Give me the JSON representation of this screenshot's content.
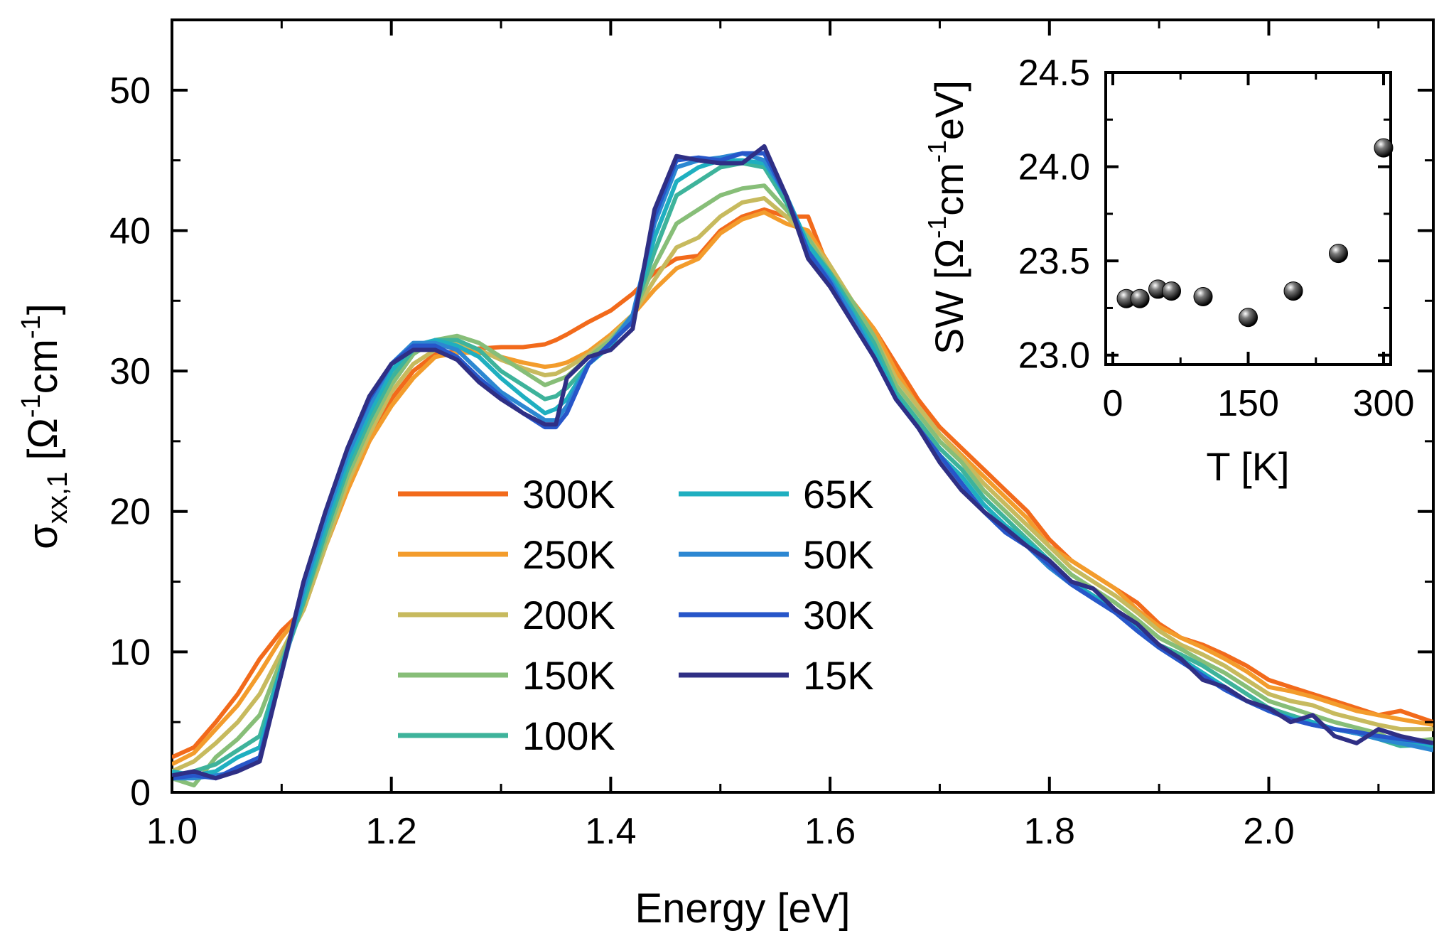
{
  "chart_data": [
    {
      "type": "line",
      "xlabel": "Energy [eV]",
      "ylabel_parts": {
        "sigma": "σ",
        "sub": "xx,1",
        "open": " [Ω",
        "sup1": "-1",
        "cm": "cm",
        "sup2": "-1",
        "close": "]"
      },
      "xlim": [
        1.0,
        2.15
      ],
      "ylim": [
        0,
        55
      ],
      "xticks": [
        "1.0",
        "1.2",
        "1.4",
        "1.6",
        "1.8",
        "2.0"
      ],
      "xtick_values": [
        1.0,
        1.2,
        1.4,
        1.6,
        1.8,
        2.0
      ],
      "yticks": [
        "0",
        "10",
        "20",
        "30",
        "40",
        "50"
      ],
      "ytick_values": [
        0,
        10,
        20,
        30,
        40,
        50
      ],
      "legend_position": "center",
      "x": [
        1.0,
        1.02,
        1.04,
        1.06,
        1.08,
        1.1,
        1.12,
        1.14,
        1.16,
        1.18,
        1.2,
        1.22,
        1.24,
        1.26,
        1.28,
        1.3,
        1.32,
        1.34,
        1.35,
        1.36,
        1.38,
        1.4,
        1.42,
        1.44,
        1.46,
        1.48,
        1.5,
        1.52,
        1.54,
        1.56,
        1.58,
        1.6,
        1.62,
        1.64,
        1.66,
        1.68,
        1.7,
        1.72,
        1.74,
        1.76,
        1.78,
        1.8,
        1.82,
        1.84,
        1.86,
        1.88,
        1.9,
        1.92,
        1.94,
        1.96,
        1.98,
        2.0,
        2.02,
        2.04,
        2.06,
        2.08,
        2.1,
        2.12,
        2.15
      ],
      "series": [
        {
          "name": "300K",
          "color": "#F26A1B",
          "values": [
            2.5,
            3.2,
            5.0,
            7.0,
            9.5,
            11.5,
            13.0,
            17.5,
            21.5,
            25.0,
            28.0,
            30.0,
            31.2,
            31.4,
            31.6,
            31.7,
            31.7,
            31.9,
            32.2,
            32.6,
            33.5,
            34.3,
            35.5,
            37.0,
            38.0,
            38.2,
            40.0,
            41.0,
            41.5,
            41.0,
            41.0,
            37.0,
            35.0,
            33.0,
            30.5,
            28.0,
            26.0,
            24.5,
            23.0,
            21.5,
            20.0,
            18.0,
            16.5,
            15.5,
            14.5,
            13.5,
            12.0,
            11.0,
            10.5,
            9.8,
            9.0,
            8.0,
            7.5,
            7.0,
            6.5,
            6.0,
            5.5,
            5.8,
            5.0
          ]
        },
        {
          "name": "250K",
          "color": "#F39C2C",
          "values": [
            2.0,
            2.8,
            4.5,
            6.2,
            8.5,
            11.0,
            13.0,
            17.5,
            21.5,
            25.0,
            27.5,
            29.5,
            31.0,
            31.3,
            31.3,
            31.0,
            30.6,
            30.3,
            30.4,
            30.6,
            31.4,
            32.6,
            34.0,
            35.8,
            37.3,
            38.0,
            39.8,
            40.8,
            41.3,
            40.5,
            40.0,
            37.5,
            35.0,
            33.0,
            30.0,
            27.5,
            25.5,
            24.0,
            22.5,
            21.0,
            19.5,
            17.5,
            16.5,
            15.5,
            14.5,
            13.0,
            11.8,
            11.0,
            10.3,
            9.5,
            8.6,
            7.5,
            7.2,
            6.8,
            6.3,
            5.8,
            5.5,
            5.2,
            4.8
          ]
        },
        {
          "name": "200K",
          "color": "#C7BA5E",
          "values": [
            1.5,
            2.2,
            3.5,
            5.0,
            7.0,
            10.0,
            13.0,
            17.5,
            22.0,
            25.5,
            28.5,
            30.5,
            31.5,
            32.0,
            31.5,
            30.8,
            30.2,
            29.7,
            29.8,
            30.2,
            31.2,
            32.4,
            34.0,
            36.5,
            38.8,
            39.5,
            41.0,
            42.0,
            42.3,
            41.0,
            39.5,
            37.5,
            35.0,
            32.5,
            29.5,
            27.5,
            25.5,
            23.8,
            22.0,
            20.5,
            19.0,
            17.5,
            16.0,
            15.0,
            14.0,
            12.8,
            11.5,
            10.5,
            9.8,
            9.0,
            8.0,
            7.0,
            6.5,
            6.2,
            5.6,
            5.2,
            4.8,
            4.5,
            4.5
          ]
        },
        {
          "name": "150K",
          "color": "#87BE78",
          "values": [
            1.0,
            0.5,
            2.5,
            3.8,
            5.5,
            9.5,
            13.5,
            18.0,
            22.5,
            26.0,
            29.0,
            31.2,
            32.2,
            32.5,
            32.0,
            31.0,
            30.0,
            29.0,
            29.3,
            29.6,
            31.0,
            32.2,
            34.0,
            37.5,
            40.5,
            41.5,
            42.5,
            43.0,
            43.2,
            41.5,
            39.5,
            37.0,
            35.0,
            32.5,
            29.0,
            27.0,
            25.0,
            23.5,
            21.5,
            20.0,
            18.5,
            17.0,
            15.5,
            14.5,
            13.5,
            12.3,
            11.0,
            10.2,
            9.3,
            8.5,
            7.5,
            6.5,
            6.0,
            5.5,
            5.0,
            4.6,
            4.2,
            3.5,
            3.8
          ]
        },
        {
          "name": "100K",
          "color": "#3EB39B",
          "values": [
            1.2,
            1.5,
            2.0,
            3.0,
            4.0,
            9.0,
            13.5,
            18.5,
            23.0,
            26.5,
            29.5,
            31.5,
            32.2,
            32.2,
            31.5,
            30.0,
            29.0,
            28.0,
            28.2,
            28.8,
            30.5,
            31.8,
            34.0,
            38.5,
            42.5,
            43.5,
            44.5,
            44.8,
            44.5,
            42.0,
            39.0,
            37.0,
            34.5,
            32.0,
            28.5,
            26.5,
            24.5,
            23.0,
            21.0,
            19.5,
            18.0,
            16.5,
            15.0,
            14.0,
            13.0,
            11.8,
            10.5,
            9.8,
            9.0,
            8.0,
            7.0,
            6.0,
            5.5,
            5.0,
            4.5,
            4.2,
            3.8,
            3.3,
            3.4
          ]
        },
        {
          "name": "65K",
          "color": "#1FAFC0",
          "values": [
            1.5,
            1.2,
            1.5,
            2.5,
            3.2,
            9.0,
            14.0,
            19.0,
            23.5,
            27.0,
            30.0,
            31.8,
            32.2,
            31.8,
            31.0,
            29.5,
            28.2,
            27.0,
            27.3,
            28.0,
            30.5,
            31.8,
            34.0,
            39.5,
            43.5,
            44.5,
            45.0,
            45.0,
            44.8,
            42.5,
            39.0,
            36.8,
            34.2,
            31.5,
            28.2,
            26.0,
            24.0,
            22.5,
            20.5,
            19.0,
            17.8,
            16.5,
            15.0,
            14.0,
            13.0,
            11.8,
            10.5,
            9.5,
            8.5,
            7.5,
            6.5,
            5.8,
            5.3,
            5.0,
            4.5,
            4.2,
            3.8,
            3.5,
            3.3
          ]
        },
        {
          "name": "50K",
          "color": "#2C87D2",
          "values": [
            1.0,
            1.0,
            1.2,
            1.5,
            2.5,
            8.5,
            14.5,
            19.5,
            24.0,
            27.5,
            30.5,
            32.0,
            32.0,
            31.5,
            30.0,
            28.5,
            27.5,
            26.5,
            26.5,
            27.5,
            30.5,
            32.0,
            34.0,
            40.5,
            44.5,
            45.0,
            45.2,
            45.5,
            45.0,
            42.5,
            38.5,
            36.5,
            34.0,
            31.0,
            28.0,
            26.0,
            24.0,
            22.0,
            20.0,
            18.5,
            17.5,
            16.0,
            14.8,
            13.8,
            12.8,
            11.5,
            10.3,
            9.3,
            8.3,
            7.3,
            6.5,
            5.8,
            5.2,
            4.8,
            4.5,
            4.2,
            3.8,
            3.5,
            3.0
          ]
        },
        {
          "name": "30K",
          "color": "#2756C9",
          "values": [
            1.0,
            1.2,
            1.0,
            1.8,
            2.5,
            8.5,
            15.0,
            20.0,
            24.5,
            28.0,
            30.5,
            31.8,
            31.8,
            31.0,
            29.5,
            28.2,
            27.0,
            26.0,
            26.0,
            27.0,
            30.5,
            32.0,
            33.5,
            41.0,
            45.0,
            45.2,
            45.0,
            45.5,
            45.5,
            42.5,
            38.5,
            36.3,
            33.5,
            31.0,
            28.0,
            26.0,
            24.0,
            22.0,
            20.0,
            18.5,
            17.5,
            16.2,
            14.8,
            13.8,
            12.8,
            11.5,
            10.3,
            9.3,
            8.3,
            7.3,
            6.5,
            5.8,
            5.2,
            4.8,
            4.5,
            4.3,
            4.0,
            3.8,
            3.5
          ]
        },
        {
          "name": "15K",
          "color": "#2F2F85",
          "values": [
            1.2,
            1.5,
            1.0,
            1.5,
            2.2,
            8.5,
            15.0,
            20.0,
            24.5,
            28.2,
            30.5,
            31.5,
            31.5,
            30.8,
            29.2,
            28.0,
            27.0,
            26.2,
            26.2,
            29.5,
            31.0,
            31.5,
            33.0,
            41.5,
            45.3,
            45.0,
            44.8,
            44.8,
            46.0,
            42.5,
            38.0,
            36.0,
            33.5,
            31.0,
            28.0,
            26.0,
            23.5,
            21.5,
            20.0,
            18.8,
            17.5,
            16.5,
            15.0,
            14.5,
            13.0,
            12.0,
            10.5,
            9.5,
            8.0,
            7.5,
            6.5,
            6.0,
            5.0,
            5.5,
            4.0,
            3.5,
            4.5,
            4.0,
            3.5
          ]
        }
      ]
    },
    {
      "type": "scatter",
      "xlabel": "T [K]",
      "ylabel_parts": {
        "pre": "SW [Ω",
        "sup1": "-1",
        "cm": "cm",
        "sup2": "-1",
        "post": "eV]"
      },
      "xlim": [
        0,
        300
      ],
      "ylim": [
        22.95,
        24.5
      ],
      "xticks": [
        "0",
        "150",
        "300"
      ],
      "xtick_values": [
        0,
        150,
        300
      ],
      "yticks": [
        "23.0",
        "23.5",
        "24.0",
        "24.5"
      ],
      "ytick_values": [
        23.0,
        23.5,
        24.0,
        24.5
      ],
      "x": [
        15,
        30,
        50,
        65,
        100,
        150,
        200,
        250,
        300
      ],
      "y": [
        23.3,
        23.3,
        23.35,
        23.34,
        23.31,
        23.2,
        23.34,
        23.54,
        24.1
      ]
    }
  ]
}
